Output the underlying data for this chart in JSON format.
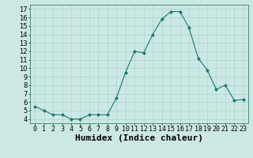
{
  "x": [
    0,
    1,
    2,
    3,
    4,
    5,
    6,
    7,
    8,
    9,
    10,
    11,
    12,
    13,
    14,
    15,
    16,
    17,
    18,
    19,
    20,
    21,
    22,
    23
  ],
  "y": [
    5.5,
    5.0,
    4.5,
    4.5,
    4.0,
    4.0,
    4.5,
    4.5,
    4.5,
    6.5,
    9.5,
    12.0,
    11.8,
    14.0,
    15.8,
    16.7,
    16.7,
    14.8,
    11.2,
    9.8,
    7.5,
    8.0,
    6.2,
    6.3
  ],
  "line_color": "#1a7a6e",
  "marker": "D",
  "marker_size": 2,
  "bg_color": "#cce8e4",
  "grid_color": "#aad4cf",
  "xlabel": "Humidex (Indice chaleur)",
  "ylabel_ticks": [
    4,
    5,
    6,
    7,
    8,
    9,
    10,
    11,
    12,
    13,
    14,
    15,
    16,
    17
  ],
  "xtick_labels": [
    "0",
    "1",
    "2",
    "3",
    "4",
    "5",
    "6",
    "7",
    "8",
    "9",
    "1011",
    "1213",
    "1415",
    "1617",
    "1819",
    "2021",
    "2223"
  ],
  "xlim": [
    -0.5,
    23.5
  ],
  "ylim": [
    3.5,
    17.5
  ],
  "axis_fontsize": 7,
  "tick_fontsize": 6,
  "xlabel_fontsize": 8
}
